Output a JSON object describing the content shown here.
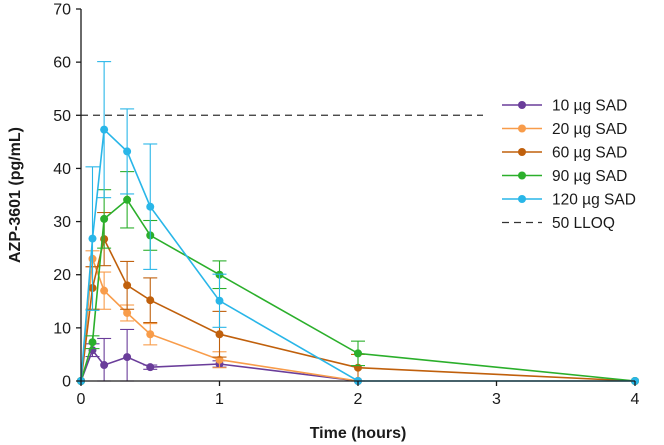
{
  "chart_data": {
    "type": "line",
    "title": "",
    "xlabel": "Time (hours)",
    "ylabel": "AZP-3601 (pg/mL)",
    "xlim": [
      0,
      4
    ],
    "ylim": [
      0,
      70
    ],
    "xticks": [
      0,
      1,
      2,
      3,
      4
    ],
    "yticks": [
      0,
      10,
      20,
      30,
      40,
      50,
      60,
      70
    ],
    "grid": false,
    "legend_position": "right",
    "series": [
      {
        "name": "10 µg SAD",
        "color": "#6A3D9A",
        "x": [
          0,
          0.083,
          0.167,
          0.333,
          0.5,
          1,
          2
        ],
        "y": [
          0,
          5.8,
          3.0,
          4.5,
          2.6,
          3.2,
          0
        ],
        "error": [
          0,
          1.2,
          5.0,
          5.2,
          0.4,
          0.6,
          0
        ]
      },
      {
        "name": "20 µg SAD",
        "color": "#F89C4A",
        "x": [
          0,
          0.083,
          0.167,
          0.333,
          0.5,
          1,
          2
        ],
        "y": [
          0,
          23.0,
          17.0,
          12.8,
          8.8,
          4.0,
          0
        ],
        "error": [
          0,
          1.5,
          3.5,
          1.5,
          2.0,
          1.5,
          0
        ]
      },
      {
        "name": "60 µg SAD",
        "color": "#C0600C",
        "x": [
          0,
          0.083,
          0.167,
          0.333,
          0.5,
          1,
          2,
          4
        ],
        "y": [
          0,
          17.5,
          26.7,
          18.0,
          15.2,
          8.8,
          2.5,
          0
        ],
        "error": [
          0,
          4.0,
          5.0,
          4.5,
          4.2,
          4.3,
          2.5,
          0
        ]
      },
      {
        "name": "90 µg SAD",
        "color": "#2BAF2B",
        "x": [
          0,
          0.083,
          0.167,
          0.333,
          0.5,
          1,
          2,
          4
        ],
        "y": [
          0,
          7.3,
          30.5,
          34.1,
          27.4,
          20.0,
          5.2,
          0
        ],
        "error": [
          0,
          1.2,
          5.5,
          5.3,
          2.8,
          2.6,
          2.3,
          0
        ]
      },
      {
        "name": "120 µg SAD",
        "color": "#29B6E8",
        "x": [
          0,
          0.083,
          0.167,
          0.333,
          0.5,
          1,
          2,
          4
        ],
        "y": [
          0,
          26.8,
          47.3,
          43.2,
          32.8,
          15.1,
          0,
          0
        ],
        "error": [
          0,
          13.5,
          12.8,
          8.0,
          11.8,
          5.0,
          0,
          0
        ]
      }
    ],
    "reference_lines": [
      {
        "name": "50 LLOQ",
        "y": 50,
        "style": "dashed",
        "color": "#333333"
      }
    ]
  }
}
